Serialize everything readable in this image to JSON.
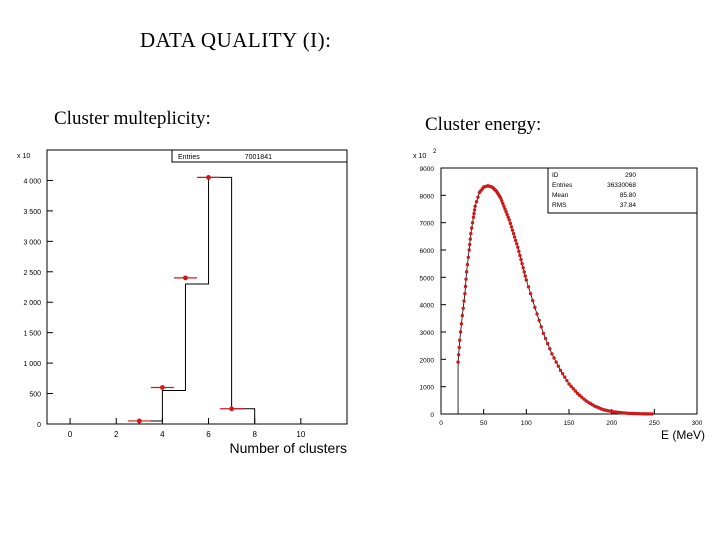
{
  "title": "DATA QUALITY (I):",
  "chart_data": [
    {
      "type": "histogram",
      "subtitle": "Cluster multeplicity:",
      "xlabel": "Number of clusters",
      "ylabel_multiplier": "x 10",
      "xlim": [
        -1,
        12
      ],
      "ylim": [
        0,
        4500
      ],
      "x_tick_labels": [
        "0",
        "2",
        "4",
        "6",
        "8",
        "10"
      ],
      "y_tick_labels": [
        "0",
        "500",
        "1 000",
        "1 500",
        "2 000",
        "2 500",
        "3 000",
        "3 500",
        "4 000"
      ],
      "stats": {
        "Entries": "7001841"
      },
      "histogram": {
        "bin_edges": [
          0,
          1,
          2,
          3,
          4,
          5,
          6,
          7,
          8,
          9,
          10,
          11,
          12
        ],
        "values": [
          0,
          0,
          0,
          50,
          550,
          2300,
          4050,
          250,
          0,
          0,
          0,
          0
        ]
      },
      "points": {
        "x": [
          3,
          4,
          5,
          6,
          7
        ],
        "y": [
          50,
          600,
          2400,
          4050,
          250
        ]
      },
      "colors": {
        "histogram": "#000000",
        "points": "#cc1a1a"
      }
    },
    {
      "type": "histogram",
      "subtitle": "Cluster energy:",
      "xlabel": "E (MeV)",
      "ylabel_multiplier": "x 10",
      "ylabel_exponent": "2",
      "xlim": [
        0,
        300
      ],
      "ylim": [
        0,
        9000
      ],
      "x_tick_labels": [
        "0",
        "50",
        "100",
        "150",
        "200",
        "250",
        "300"
      ],
      "y_tick_labels": [
        "0",
        "1000",
        "2000",
        "3000",
        "4000",
        "5000",
        "6000",
        "7000",
        "8000",
        "9000"
      ],
      "stats": {
        "ID": "290",
        "Entries": "36330068",
        "Mean": "85.80",
        "RMS": "37.84"
      },
      "curve": {
        "x": [
          20,
          22,
          25,
          28,
          30,
          33,
          35,
          38,
          40,
          45,
          50,
          55,
          60,
          65,
          70,
          75,
          80,
          85,
          90,
          95,
          100,
          110,
          120,
          130,
          140,
          150,
          160,
          170,
          180,
          190,
          200,
          210,
          220,
          230,
          240,
          250
        ],
        "y": [
          1900,
          2700,
          3600,
          4400,
          5200,
          6000,
          6600,
          7200,
          7600,
          8100,
          8300,
          8350,
          8300,
          8150,
          7900,
          7500,
          7100,
          6600,
          6100,
          5500,
          4900,
          3900,
          2950,
          2200,
          1600,
          1100,
          750,
          480,
          290,
          160,
          90,
          50,
          25,
          12,
          5,
          2
        ]
      },
      "colors": {
        "curve": "#cc1a1a",
        "histogram": "#000000"
      }
    }
  ]
}
